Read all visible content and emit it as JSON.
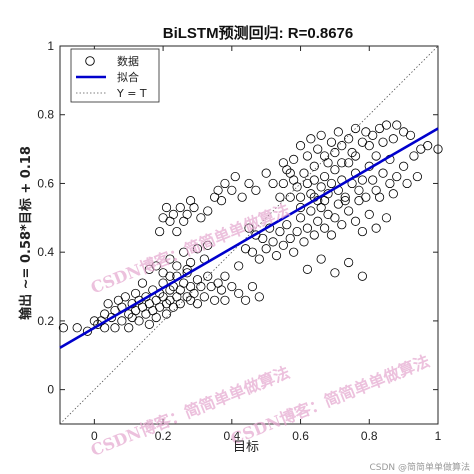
{
  "chart_data": {
    "type": "scatter",
    "title": "BiLSTM预测回归: R=0.8676",
    "xlabel": "目标",
    "ylabel": "输出 ~= 0.58*目标 + 0.18",
    "xlim": [
      -0.1,
      1.0
    ],
    "ylim": [
      -0.1,
      1.0
    ],
    "xticks": [
      0,
      0.2,
      0.4,
      0.6,
      0.8,
      1
    ],
    "yticks": [
      0,
      0.2,
      0.4,
      0.6,
      0.8,
      1
    ],
    "xtick_labels": [
      "0",
      "0.2",
      "0.4",
      "0.6",
      "0.8",
      "1"
    ],
    "ytick_labels": [
      "0",
      "0.2",
      "0.4",
      "0.6",
      "0.8",
      "1"
    ],
    "legend_position": "top-left",
    "legend": {
      "data": "数据",
      "fit": "拟合",
      "identity": "Y = T"
    },
    "fit": {
      "slope": 0.58,
      "intercept": 0.18,
      "color": "#0000cc"
    },
    "identity_color": "#555555",
    "marker_color": "#000000",
    "series": [
      {
        "type": "scatter",
        "points": [
          [
            -0.09,
            0.18
          ],
          [
            -0.05,
            0.18
          ],
          [
            -0.02,
            0.17
          ],
          [
            0.0,
            0.2
          ],
          [
            0.01,
            0.19
          ],
          [
            0.02,
            0.2
          ],
          [
            0.03,
            0.18
          ],
          [
            0.03,
            0.22
          ],
          [
            0.04,
            0.25
          ],
          [
            0.05,
            0.21
          ],
          [
            0.06,
            0.23
          ],
          [
            0.06,
            0.18
          ],
          [
            0.07,
            0.26
          ],
          [
            0.08,
            0.2
          ],
          [
            0.08,
            0.24
          ],
          [
            0.09,
            0.27
          ],
          [
            0.1,
            0.22
          ],
          [
            0.1,
            0.18
          ],
          [
            0.11,
            0.25
          ],
          [
            0.11,
            0.21
          ],
          [
            0.12,
            0.23
          ],
          [
            0.12,
            0.28
          ],
          [
            0.13,
            0.2
          ],
          [
            0.13,
            0.26
          ],
          [
            0.14,
            0.24
          ],
          [
            0.14,
            0.31
          ],
          [
            0.15,
            0.22
          ],
          [
            0.15,
            0.27
          ],
          [
            0.16,
            0.19
          ],
          [
            0.16,
            0.25
          ],
          [
            0.17,
            0.29
          ],
          [
            0.17,
            0.23
          ],
          [
            0.18,
            0.26
          ],
          [
            0.18,
            0.21
          ],
          [
            0.19,
            0.28
          ],
          [
            0.19,
            0.24
          ],
          [
            0.2,
            0.27
          ],
          [
            0.2,
            0.31
          ],
          [
            0.21,
            0.25
          ],
          [
            0.21,
            0.22
          ],
          [
            0.22,
            0.29
          ],
          [
            0.22,
            0.26
          ],
          [
            0.23,
            0.24
          ],
          [
            0.23,
            0.3
          ],
          [
            0.24,
            0.33
          ],
          [
            0.24,
            0.27
          ],
          [
            0.25,
            0.25
          ],
          [
            0.25,
            0.29
          ],
          [
            0.26,
            0.31
          ],
          [
            0.27,
            0.27
          ],
          [
            0.27,
            0.35
          ],
          [
            0.28,
            0.3
          ],
          [
            0.28,
            0.26
          ],
          [
            0.29,
            0.28
          ],
          [
            0.3,
            0.32
          ],
          [
            0.3,
            0.25
          ],
          [
            0.31,
            0.3
          ],
          [
            0.32,
            0.27
          ],
          [
            0.33,
            0.33
          ],
          [
            0.34,
            0.3
          ],
          [
            0.35,
            0.26
          ],
          [
            0.36,
            0.31
          ],
          [
            0.37,
            0.29
          ],
          [
            0.38,
            0.26
          ],
          [
            0.38,
            0.33
          ],
          [
            0.4,
            0.3
          ],
          [
            0.42,
            0.28
          ],
          [
            0.44,
            0.26
          ],
          [
            0.46,
            0.3
          ],
          [
            0.48,
            0.27
          ],
          [
            0.18,
            0.36
          ],
          [
            0.2,
            0.34
          ],
          [
            0.22,
            0.38
          ],
          [
            0.24,
            0.36
          ],
          [
            0.26,
            0.4
          ],
          [
            0.28,
            0.37
          ],
          [
            0.3,
            0.41
          ],
          [
            0.33,
            0.42
          ],
          [
            0.16,
            0.35
          ],
          [
            0.22,
            0.33
          ],
          [
            0.27,
            0.34
          ],
          [
            0.32,
            0.38
          ],
          [
            0.19,
            0.46
          ],
          [
            0.2,
            0.5
          ],
          [
            0.21,
            0.53
          ],
          [
            0.22,
            0.49
          ],
          [
            0.23,
            0.51
          ],
          [
            0.24,
            0.46
          ],
          [
            0.25,
            0.53
          ],
          [
            0.26,
            0.49
          ],
          [
            0.27,
            0.51
          ],
          [
            0.28,
            0.55
          ],
          [
            0.29,
            0.53
          ],
          [
            0.31,
            0.5
          ],
          [
            0.33,
            0.52
          ],
          [
            0.35,
            0.56
          ],
          [
            0.36,
            0.58
          ],
          [
            0.37,
            0.55
          ],
          [
            0.38,
            0.6
          ],
          [
            0.4,
            0.58
          ],
          [
            0.41,
            0.62
          ],
          [
            0.43,
            0.56
          ],
          [
            0.45,
            0.6
          ],
          [
            0.47,
            0.58
          ],
          [
            0.5,
            0.63
          ],
          [
            0.52,
            0.6
          ],
          [
            0.54,
            0.56
          ],
          [
            0.55,
            0.6
          ],
          [
            0.56,
            0.64
          ],
          [
            0.57,
            0.56
          ],
          [
            0.58,
            0.61
          ],
          [
            0.59,
            0.59
          ],
          [
            0.6,
            0.56
          ],
          [
            0.61,
            0.63
          ],
          [
            0.62,
            0.6
          ],
          [
            0.63,
            0.57
          ],
          [
            0.64,
            0.61
          ],
          [
            0.65,
            0.55
          ],
          [
            0.66,
            0.59
          ],
          [
            0.67,
            0.62
          ],
          [
            0.68,
            0.57
          ],
          [
            0.69,
            0.6
          ],
          [
            0.7,
            0.64
          ],
          [
            0.71,
            0.58
          ],
          [
            0.72,
            0.61
          ],
          [
            0.73,
            0.55
          ],
          [
            0.74,
            0.66
          ],
          [
            0.75,
            0.6
          ],
          [
            0.76,
            0.63
          ],
          [
            0.77,
            0.58
          ],
          [
            0.78,
            0.61
          ],
          [
            0.79,
            0.56
          ],
          [
            0.8,
            0.65
          ],
          [
            0.81,
            0.61
          ],
          [
            0.82,
            0.58
          ],
          [
            0.84,
            0.63
          ],
          [
            0.86,
            0.6
          ],
          [
            0.88,
            0.62
          ],
          [
            0.42,
            0.36
          ],
          [
            0.44,
            0.41
          ],
          [
            0.45,
            0.47
          ],
          [
            0.46,
            0.4
          ],
          [
            0.47,
            0.45
          ],
          [
            0.48,
            0.38
          ],
          [
            0.49,
            0.44
          ],
          [
            0.5,
            0.41
          ],
          [
            0.51,
            0.47
          ],
          [
            0.52,
            0.43
          ],
          [
            0.53,
            0.39
          ],
          [
            0.54,
            0.46
          ],
          [
            0.55,
            0.42
          ],
          [
            0.56,
            0.48
          ],
          [
            0.57,
            0.44
          ],
          [
            0.58,
            0.4
          ],
          [
            0.59,
            0.46
          ],
          [
            0.6,
            0.5
          ],
          [
            0.61,
            0.43
          ],
          [
            0.62,
            0.47
          ],
          [
            0.63,
            0.52
          ],
          [
            0.64,
            0.45
          ],
          [
            0.65,
            0.49
          ],
          [
            0.66,
            0.53
          ],
          [
            0.67,
            0.47
          ],
          [
            0.68,
            0.51
          ],
          [
            0.69,
            0.45
          ],
          [
            0.7,
            0.5
          ],
          [
            0.72,
            0.48
          ],
          [
            0.74,
            0.52
          ],
          [
            0.76,
            0.49
          ],
          [
            0.78,
            0.46
          ],
          [
            0.8,
            0.51
          ],
          [
            0.82,
            0.47
          ],
          [
            0.85,
            0.5
          ],
          [
            0.62,
            0.35
          ],
          [
            0.66,
            0.38
          ],
          [
            0.7,
            0.34
          ],
          [
            0.74,
            0.37
          ],
          [
            0.78,
            0.33
          ],
          [
            0.58,
            0.67
          ],
          [
            0.6,
            0.71
          ],
          [
            0.62,
            0.68
          ],
          [
            0.63,
            0.73
          ],
          [
            0.65,
            0.7
          ],
          [
            0.66,
            0.74
          ],
          [
            0.67,
            0.68
          ],
          [
            0.69,
            0.72
          ],
          [
            0.7,
            0.69
          ],
          [
            0.71,
            0.75
          ],
          [
            0.72,
            0.71
          ],
          [
            0.74,
            0.73
          ],
          [
            0.75,
            0.69
          ],
          [
            0.76,
            0.76
          ],
          [
            0.78,
            0.72
          ],
          [
            0.79,
            0.75
          ],
          [
            0.8,
            0.71
          ],
          [
            0.81,
            0.74
          ],
          [
            0.83,
            0.76
          ],
          [
            0.84,
            0.72
          ],
          [
            0.85,
            0.77
          ],
          [
            0.87,
            0.73
          ],
          [
            0.88,
            0.77
          ],
          [
            0.9,
            0.75
          ],
          [
            0.92,
            0.74
          ],
          [
            0.93,
            0.68
          ],
          [
            0.95,
            0.7
          ],
          [
            0.97,
            0.71
          ],
          [
            1.0,
            0.7
          ],
          [
            0.9,
            0.65
          ],
          [
            0.86,
            0.67
          ],
          [
            0.68,
            0.66
          ],
          [
            0.55,
            0.66
          ],
          [
            0.57,
            0.63
          ],
          [
            0.64,
            0.65
          ],
          [
            0.72,
            0.66
          ],
          [
            0.76,
            0.68
          ],
          [
            0.82,
            0.68
          ],
          [
            0.94,
            0.62
          ],
          [
            0.6,
            0.53
          ],
          [
            0.64,
            0.56
          ],
          [
            0.67,
            0.55
          ],
          [
            0.71,
            0.54
          ],
          [
            0.73,
            0.56
          ],
          [
            0.77,
            0.55
          ],
          [
            0.83,
            0.56
          ],
          [
            0.87,
            0.57
          ],
          [
            0.91,
            0.6
          ]
        ]
      }
    ]
  },
  "watermarks": [
    "CSDN博客：简简单单做算法",
    "CSDN博客：简简单单做算法",
    "CSDN博客：简简单单做算法"
  ],
  "footer_credit": "CSDN @简简单单做算法"
}
